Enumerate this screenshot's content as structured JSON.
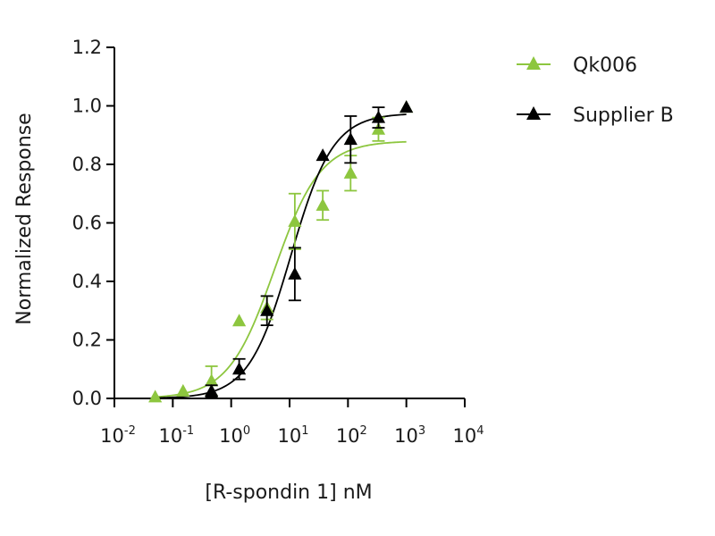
{
  "chart_data": {
    "type": "scatter",
    "title": "",
    "xlabel": "[R-spondin 1] nM",
    "ylabel": "Normalized Response",
    "x_scale": "log10",
    "xlim": [
      0.01,
      10000
    ],
    "ylim": [
      0,
      1.2
    ],
    "x_ticks": [
      {
        "base": "10",
        "exp": "-2"
      },
      {
        "base": "10",
        "exp": "-1"
      },
      {
        "base": "10",
        "exp": "0"
      },
      {
        "base": "10",
        "exp": "1"
      },
      {
        "base": "10",
        "exp": "2"
      },
      {
        "base": "10",
        "exp": "3"
      },
      {
        "base": "10",
        "exp": "4"
      }
    ],
    "y_ticks": [
      "0.0",
      "0.2",
      "0.4",
      "0.6",
      "0.8",
      "1.0",
      "1.2"
    ],
    "grid": false,
    "legend_position": "top-right",
    "series": [
      {
        "name": "Qk006",
        "color": "#8dc63f",
        "marker": "triangle",
        "fit": {
          "bottom": 0.0,
          "top": 0.88,
          "ec50": 5.5,
          "hill": 1.1
        },
        "points": [
          {
            "x": 0.05,
            "y": 0.005,
            "err": 0
          },
          {
            "x": 0.15,
            "y": 0.025,
            "err": 0
          },
          {
            "x": 0.46,
            "y": 0.06,
            "err": 0.05
          },
          {
            "x": 1.37,
            "y": 0.265,
            "err": 0
          },
          {
            "x": 4.1,
            "y": 0.31,
            "err": 0.04
          },
          {
            "x": 12.3,
            "y": 0.605,
            "err": 0.095
          },
          {
            "x": 37,
            "y": 0.66,
            "err": 0.05
          },
          {
            "x": 111,
            "y": 0.77,
            "err": 0.06
          },
          {
            "x": 333,
            "y": 0.92,
            "err": 0.04
          },
          {
            "x": 1000,
            "y": 0.995,
            "err": 0
          }
        ]
      },
      {
        "name": "Supplier B",
        "color": "#000000",
        "marker": "triangle",
        "fit": {
          "bottom": 0.0,
          "top": 0.975,
          "ec50": 10.5,
          "hill": 1.2
        },
        "points": [
          {
            "x": 0.46,
            "y": 0.025,
            "err": 0.02
          },
          {
            "x": 1.37,
            "y": 0.1,
            "err": 0.035
          },
          {
            "x": 4.1,
            "y": 0.3,
            "err": 0.05
          },
          {
            "x": 12.3,
            "y": 0.425,
            "err": 0.09
          },
          {
            "x": 37,
            "y": 0.83,
            "err": 0
          },
          {
            "x": 111,
            "y": 0.885,
            "err": 0.08
          },
          {
            "x": 333,
            "y": 0.96,
            "err": 0.035
          },
          {
            "x": 1000,
            "y": 0.995,
            "err": 0
          }
        ]
      }
    ]
  }
}
